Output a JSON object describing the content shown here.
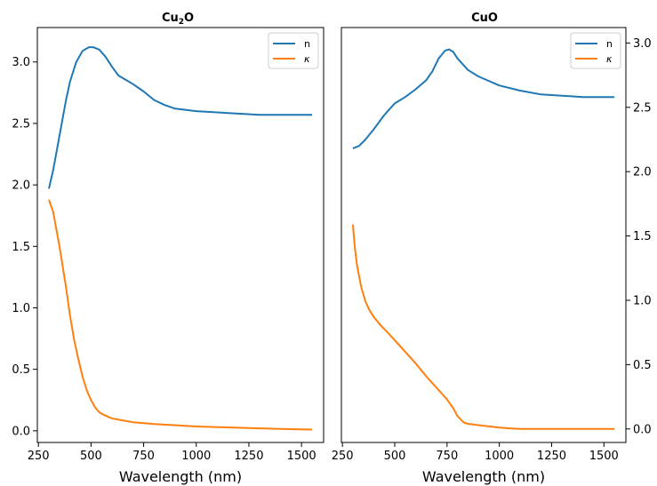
{
  "colors": {
    "n": "#1f77b4",
    "kappa": "#ff7f0e",
    "frame": "#000000",
    "legend_border": "#cccccc"
  },
  "chart_data": [
    {
      "type": "line",
      "title": "Cu₂O",
      "xlabel": "Wavelength (nm)",
      "ylabel": "",
      "xlim": [
        245,
        1605
      ],
      "ylim": [
        -0.095,
        3.28
      ],
      "xticks": [
        250,
        500,
        750,
        1000,
        1250,
        1500
      ],
      "yticks": [
        0.0,
        0.5,
        1.0,
        1.5,
        2.0,
        2.5,
        3.0
      ],
      "ytick_labels": [
        "0.0",
        "0.5",
        "1.0",
        "1.5",
        "2.0",
        "2.5",
        "3.0"
      ],
      "y_axis_side": "left",
      "grid": false,
      "legend": "top-right",
      "series": [
        {
          "name": "n",
          "color": "#1f77b4",
          "x": [
            300,
            320,
            350,
            380,
            400,
            430,
            460,
            490,
            510,
            540,
            570,
            600,
            630,
            660,
            700,
            750,
            800,
            850,
            900,
            1000,
            1100,
            1200,
            1300,
            1400,
            1550
          ],
          "y": [
            1.97,
            2.12,
            2.4,
            2.68,
            2.84,
            3.0,
            3.09,
            3.12,
            3.12,
            3.1,
            3.04,
            2.96,
            2.89,
            2.86,
            2.82,
            2.76,
            2.69,
            2.65,
            2.62,
            2.6,
            2.59,
            2.58,
            2.57,
            2.57,
            2.57
          ]
        },
        {
          "name": "κ",
          "color": "#ff7f0e",
          "x": [
            300,
            320,
            350,
            380,
            400,
            420,
            440,
            460,
            480,
            500,
            520,
            540,
            560,
            580,
            600,
            650,
            700,
            800,
            900,
            1000,
            1100,
            1200,
            1300,
            1400,
            1550
          ],
          "y": [
            1.88,
            1.78,
            1.5,
            1.18,
            0.94,
            0.74,
            0.58,
            0.44,
            0.33,
            0.25,
            0.19,
            0.15,
            0.13,
            0.115,
            0.1,
            0.085,
            0.07,
            0.055,
            0.045,
            0.035,
            0.03,
            0.025,
            0.02,
            0.015,
            0.01
          ]
        }
      ]
    },
    {
      "type": "line",
      "title": "CuO",
      "xlabel": "Wavelength (nm)",
      "ylabel": "",
      "xlim": [
        245,
        1605
      ],
      "ylim": [
        -0.105,
        3.12
      ],
      "xticks": [
        250,
        500,
        750,
        1000,
        1250,
        1500
      ],
      "yticks": [
        0.0,
        0.5,
        1.0,
        1.5,
        2.0,
        2.5,
        3.0
      ],
      "ytick_labels": [
        "0.0",
        "0.5",
        "1.0",
        "1.5",
        "2.0",
        "2.5",
        "3.0"
      ],
      "y_axis_side": "right",
      "grid": false,
      "legend": "top-right",
      "series": [
        {
          "name": "n",
          "color": "#1f77b4",
          "x": [
            300,
            330,
            360,
            400,
            450,
            500,
            550,
            600,
            650,
            680,
            710,
            740,
            760,
            780,
            800,
            850,
            900,
            1000,
            1100,
            1200,
            1300,
            1400,
            1550
          ],
          "y": [
            2.18,
            2.2,
            2.25,
            2.33,
            2.44,
            2.53,
            2.58,
            2.64,
            2.71,
            2.78,
            2.88,
            2.94,
            2.95,
            2.93,
            2.88,
            2.79,
            2.74,
            2.67,
            2.63,
            2.6,
            2.59,
            2.58,
            2.58
          ]
        },
        {
          "name": "κ",
          "color": "#ff7f0e",
          "x": [
            300,
            310,
            320,
            340,
            360,
            380,
            400,
            430,
            460,
            500,
            550,
            600,
            650,
            700,
            750,
            780,
            800,
            830,
            850,
            900,
            950,
            1000,
            1050,
            1100,
            1200,
            1300,
            1400,
            1550
          ],
          "y": [
            1.59,
            1.4,
            1.27,
            1.1,
            0.99,
            0.92,
            0.87,
            0.81,
            0.76,
            0.69,
            0.6,
            0.51,
            0.41,
            0.32,
            0.23,
            0.16,
            0.1,
            0.05,
            0.04,
            0.03,
            0.02,
            0.01,
            0.005,
            0.0,
            0.0,
            0.0,
            0.0,
            0.0
          ]
        }
      ]
    }
  ]
}
